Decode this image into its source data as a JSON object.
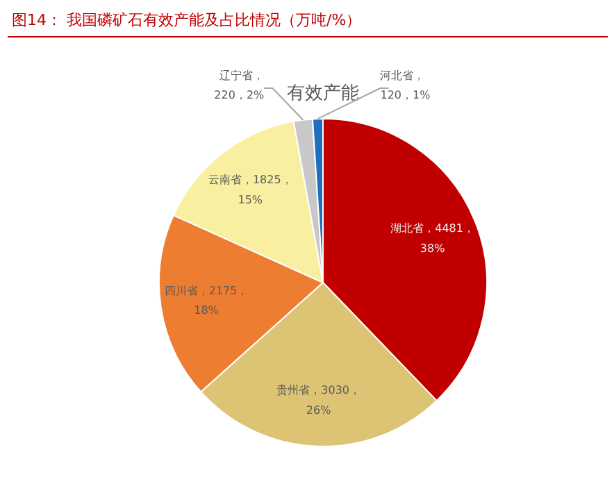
{
  "chart_data": {
    "type": "pie",
    "title": "图14：  我国磷矿石有效产能及占比情况（万吨/%）",
    "subtitle": "有效产能",
    "categories": [
      "湖北省",
      "贵州省",
      "四川省",
      "云南省",
      "辽宁省",
      "河北省"
    ],
    "values": [
      4481,
      3030,
      2175,
      1825,
      220,
      120
    ],
    "colors": [
      "#c00000",
      "#dcc474",
      "#ed7d31",
      "#f8f0a0",
      "#c8c8c8",
      "#1f6fc0"
    ],
    "value_labels": [
      "，4481，\n38%",
      "，3030，\n26%",
      "，2175，\n18%",
      "，1825，\n15%",
      "，\n220，2%",
      "，\n120，1%"
    ]
  }
}
